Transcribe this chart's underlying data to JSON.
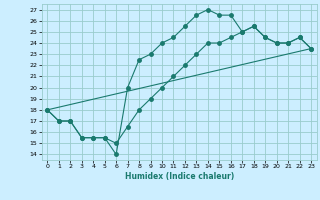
{
  "title": "",
  "xlabel": "Humidex (Indice chaleur)",
  "background_color": "#cceeff",
  "grid_color": "#99cccc",
  "line_color": "#1a7a6e",
  "xlim": [
    -0.5,
    23.5
  ],
  "ylim": [
    13.5,
    27.5
  ],
  "xticks": [
    0,
    1,
    2,
    3,
    4,
    5,
    6,
    7,
    8,
    9,
    10,
    11,
    12,
    13,
    14,
    15,
    16,
    17,
    18,
    19,
    20,
    21,
    22,
    23
  ],
  "yticks": [
    14,
    15,
    16,
    17,
    18,
    19,
    20,
    21,
    22,
    23,
    24,
    25,
    26,
    27
  ],
  "line1_x": [
    0,
    1,
    2,
    3,
    4,
    5,
    6,
    7,
    8,
    9,
    10,
    11,
    12,
    13,
    14,
    15,
    16,
    17,
    18,
    19,
    20,
    21,
    22,
    23
  ],
  "line1_y": [
    18,
    17,
    17,
    15.5,
    15.5,
    15.5,
    14,
    20,
    22.5,
    23,
    24,
    24.5,
    25.5,
    26.5,
    27,
    26.5,
    26.5,
    25,
    25.5,
    24.5,
    24,
    24,
    24.5,
    23.5
  ],
  "line2_x": [
    0,
    1,
    2,
    3,
    4,
    5,
    6,
    7,
    8,
    9,
    10,
    11,
    12,
    13,
    14,
    15,
    16,
    17,
    18,
    19,
    20,
    21,
    22,
    23
  ],
  "line2_y": [
    18,
    17,
    17,
    15.5,
    15.5,
    15.5,
    15,
    16.5,
    18,
    19,
    20,
    21,
    22,
    23,
    24,
    24,
    24.5,
    25,
    25.5,
    24.5,
    24,
    24,
    24.5,
    23.5
  ],
  "line3_x": [
    0,
    23
  ],
  "line3_y": [
    18,
    23.5
  ],
  "marker_size": 2.5
}
